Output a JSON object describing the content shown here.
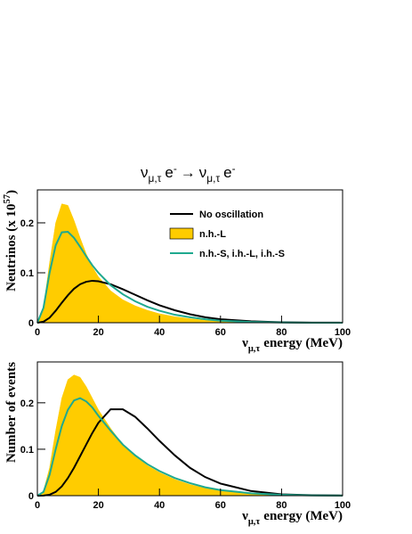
{
  "chart_data": [
    {
      "type": "line",
      "title_parts": [
        "ν",
        "μ,τ",
        "e",
        "-",
        "→",
        "ν",
        "μ,τ",
        "e",
        "-"
      ],
      "x_label_parts": [
        "ν",
        "μ,τ",
        "energy (MeV)"
      ],
      "y_label_parts": [
        "Neutrinos (x 10",
        "57",
        ")"
      ],
      "x": [
        0,
        2,
        4,
        6,
        8,
        10,
        12,
        14,
        16,
        18,
        20,
        24,
        28,
        32,
        36,
        40,
        45,
        50,
        55,
        60,
        70,
        80,
        90,
        100
      ],
      "xlim": [
        0,
        100
      ],
      "xticks": [
        0,
        20,
        40,
        60,
        80,
        100
      ],
      "ylim": [
        0,
        0.266
      ],
      "yticks": [
        0,
        0.1,
        0.2
      ],
      "legend": "upper right",
      "series": [
        {
          "name": "n.h.-L",
          "color": "#ffcc00",
          "fill": true,
          "values": [
            0,
            0.03,
            0.12,
            0.2,
            0.238,
            0.235,
            0.205,
            0.17,
            0.138,
            0.112,
            0.092,
            0.064,
            0.046,
            0.034,
            0.025,
            0.018,
            0.012,
            0.008,
            0.005,
            0.003,
            0.001,
            0.0004,
            0.0001,
            0
          ]
        },
        {
          "name": "No oscillation",
          "color": "#000000",
          "values": [
            0,
            0.002,
            0.01,
            0.024,
            0.04,
            0.055,
            0.068,
            0.077,
            0.082,
            0.084,
            0.083,
            0.077,
            0.067,
            0.056,
            0.045,
            0.035,
            0.025,
            0.017,
            0.011,
            0.007,
            0.003,
            0.001,
            0.0003,
            0.0001
          ]
        },
        {
          "name": "n.h.-S, i.h.-L, i.h.-S",
          "color": "#1fa98f",
          "values": [
            0,
            0.03,
            0.1,
            0.155,
            0.181,
            0.182,
            0.17,
            0.152,
            0.133,
            0.115,
            0.1,
            0.075,
            0.057,
            0.043,
            0.032,
            0.024,
            0.016,
            0.011,
            0.007,
            0.004,
            0.0015,
            0.0005,
            0.0001,
            0
          ]
        }
      ]
    },
    {
      "type": "line",
      "x_label_parts": [
        "ν",
        "μ,τ",
        "energy (MeV)"
      ],
      "y_label_parts": [
        "Number of events"
      ],
      "x": [
        0,
        2,
        4,
        6,
        8,
        10,
        12,
        14,
        16,
        18,
        20,
        24,
        28,
        32,
        36,
        40,
        45,
        50,
        55,
        60,
        70,
        80,
        90,
        100
      ],
      "xlim": [
        0,
        100
      ],
      "xticks": [
        0,
        20,
        40,
        60,
        80,
        100
      ],
      "ylim": [
        0,
        0.288
      ],
      "yticks": [
        0,
        0.1,
        0.2
      ],
      "series": [
        {
          "color": "#ffcc00",
          "fill": true,
          "values": [
            0,
            0.01,
            0.06,
            0.14,
            0.21,
            0.25,
            0.26,
            0.255,
            0.235,
            0.21,
            0.185,
            0.145,
            0.11,
            0.085,
            0.065,
            0.05,
            0.035,
            0.024,
            0.016,
            0.01,
            0.004,
            0.0015,
            0.0005,
            0.0001
          ]
        },
        {
          "color": "#000000",
          "values": [
            0,
            0.0002,
            0.002,
            0.008,
            0.02,
            0.038,
            0.06,
            0.085,
            0.11,
            0.135,
            0.157,
            0.186,
            0.186,
            0.17,
            0.145,
            0.118,
            0.087,
            0.06,
            0.04,
            0.026,
            0.01,
            0.003,
            0.001,
            0.0003
          ]
        },
        {
          "color": "#1fa98f",
          "values": [
            0,
            0.008,
            0.045,
            0.1,
            0.15,
            0.185,
            0.205,
            0.21,
            0.203,
            0.19,
            0.172,
            0.14,
            0.11,
            0.087,
            0.068,
            0.053,
            0.038,
            0.027,
            0.018,
            0.012,
            0.005,
            0.002,
            0.0006,
            0.0002
          ]
        }
      ]
    }
  ]
}
